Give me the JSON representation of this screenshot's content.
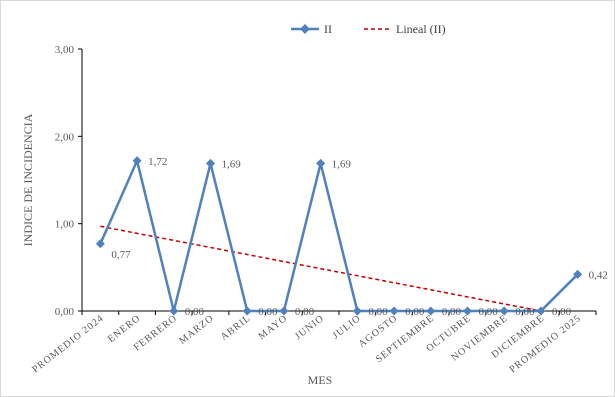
{
  "chart_data": {
    "type": "line",
    "title": "",
    "xlabel": "MES",
    "ylabel": "INDICE DE INCIDENCIA",
    "ylim": [
      0,
      3
    ],
    "yticks": [
      "0,00",
      "1,00",
      "2,00",
      "3,00"
    ],
    "grid": false,
    "legend_position": "top-center",
    "categories": [
      "PROMEDIO 2024",
      "ENERO",
      "FEBRERO",
      "MARZO",
      "ABRIL",
      "MAYO",
      "JUNIO",
      "JULIO",
      "AGOSTO",
      "SEPTIEMBRE",
      "OCTUBRE",
      "NOVIEMBRE",
      "DICIEMBRE",
      "PROMEDIO 2025"
    ],
    "series": [
      {
        "name": "II",
        "color": "#4f81bd",
        "values": [
          0.77,
          1.72,
          0.0,
          1.69,
          0.0,
          0.0,
          1.69,
          0.0,
          0.0,
          0.0,
          0.0,
          0.0,
          0.0,
          0.42
        ],
        "data_labels": [
          "0,77",
          "1,72",
          "0,00",
          "1,69",
          "0,00",
          "0,00",
          "1,69",
          "0,00",
          "0,00",
          "0,00",
          "0,00",
          "0,00",
          "0,00",
          "0,42"
        ]
      }
    ],
    "trendline": {
      "name": "Lineal (II)",
      "color": "#c00000",
      "style": "dashed",
      "start": 0.97,
      "end": 0.0
    }
  }
}
